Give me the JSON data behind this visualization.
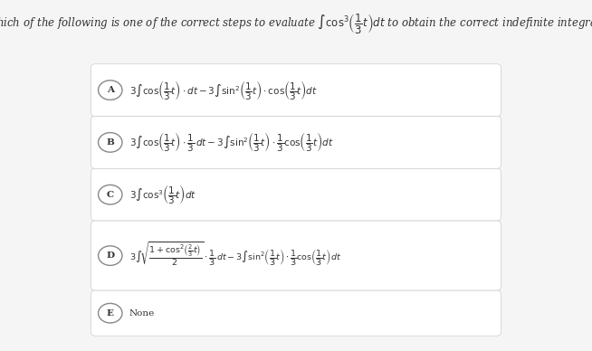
{
  "title": "Which of the following is one of the correct steps to evaluate $\\int \\cos^3\\!\\left(\\frac{1}{3}t\\right)dt$ to obtain the correct indefinite integral?",
  "options": {
    "A": "$3\\int \\cos\\!\\left(\\frac{1}{3}t\\right)\\cdot dt - 3\\int \\sin^2\\!\\left(\\frac{1}{3}t\\right)\\cdot\\cos\\!\\left(\\frac{1}{3}t\\right)dt$",
    "B": "$3\\int \\cos\\!\\left(\\frac{1}{3}t\\right)\\cdot\\frac{1}{3}\\,dt - 3\\int \\sin^2\\!\\left(\\frac{1}{3}t\\right)\\cdot\\frac{1}{3}\\cos\\!\\left(\\frac{1}{3}t\\right)dt$",
    "C": "$3\\int \\cos^3\\!\\left(\\frac{1}{3}t\\right)dt$",
    "D": "$3\\int\\!\\sqrt{\\dfrac{1+\\cos^2\\!\\left(\\frac{2}{3}t\\right)}{2}}\\cdot\\frac{1}{3}\\,dt - 3\\int \\sin^2\\!\\left(\\frac{1}{3}t\\right)\\cdot\\frac{1}{3}\\cos\\!\\left(\\frac{1}{3}t\\right)dt$",
    "E": "None"
  },
  "bg_color": "#f5f5f5",
  "box_color": "#ffffff",
  "text_color": "#333333",
  "circle_color": "#888888"
}
